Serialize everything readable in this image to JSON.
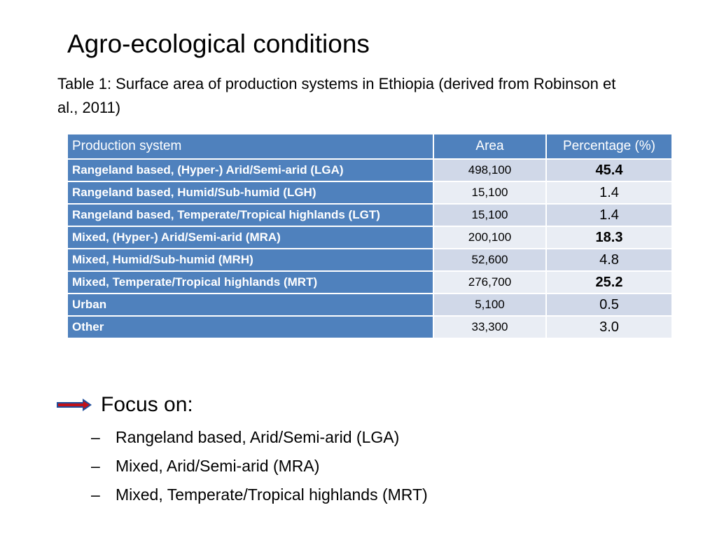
{
  "slide": {
    "title": "Agro-ecological conditions",
    "caption": "Table 1: Surface area of production systems in Ethiopia (derived from Robinson et al., 2011)"
  },
  "table": {
    "headers": [
      "Production system",
      "Area",
      "Percentage (%)"
    ],
    "rows": [
      {
        "system": "Rangeland based, (Hyper-) Arid/Semi-arid (LGA)",
        "area": "498,100",
        "percentage": "45.4",
        "bold": true
      },
      {
        "system": "Rangeland based, Humid/Sub-humid (LGH)",
        "area": "15,100",
        "percentage": "1.4",
        "bold": false
      },
      {
        "system": "Rangeland based, Temperate/Tropical highlands (LGT)",
        "area": "15,100",
        "percentage": "1.4",
        "bold": false
      },
      {
        "system": "Mixed, (Hyper-) Arid/Semi-arid (MRA)",
        "area": "200,100",
        "percentage": "18.3",
        "bold": true
      },
      {
        "system": "Mixed, Humid/Sub-humid (MRH)",
        "area": "52,600",
        "percentage": "4.8",
        "bold": false
      },
      {
        "system": "Mixed, Temperate/Tropical highlands (MRT)",
        "area": "276,700",
        "percentage": "25.2",
        "bold": true
      },
      {
        "system": "Urban",
        "area": "5,100",
        "percentage": "0.5",
        "bold": false
      },
      {
        "system": "Other",
        "area": "33,300",
        "percentage": "3.0",
        "bold": false
      }
    ]
  },
  "focus": {
    "icon": "right-arrow-icon",
    "heading": "Focus on:",
    "bullet": "–",
    "items": [
      "Rangeland based, Arid/Semi-arid (LGA)",
      "Mixed, Arid/Semi-arid (MRA)",
      "Mixed, Temperate/Tropical highlands (MRT)"
    ]
  },
  "colors": {
    "header_blue": "#4f81bd",
    "row_light": "#d0d8e8",
    "row_lighter": "#e9edf4",
    "arrow_red": "#c0121a",
    "arrow_blue": "#1f4e9a"
  }
}
